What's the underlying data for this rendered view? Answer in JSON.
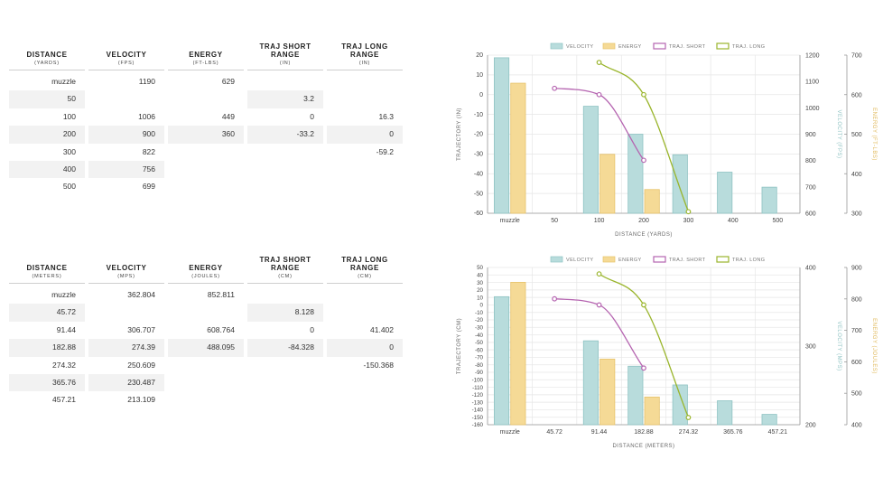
{
  "imperial": {
    "headers": [
      {
        "title": "DISTANCE",
        "sub": "(YARDS)"
      },
      {
        "title": "VELOCITY",
        "sub": "(FPS)"
      },
      {
        "title": "ENERGY",
        "sub": "(FT-LBS)"
      },
      {
        "title": "TRAJ SHORT RANGE",
        "sub": "(IN)"
      },
      {
        "title": "TRAJ LONG RANGE",
        "sub": "(IN)"
      }
    ],
    "rows": [
      [
        "muzzle",
        "1190",
        "629",
        "",
        ""
      ],
      [
        "50",
        "",
        "",
        "3.2",
        ""
      ],
      [
        "100",
        "1006",
        "449",
        "0",
        "16.3"
      ],
      [
        "200",
        "900",
        "360",
        "-33.2",
        "0"
      ],
      [
        "300",
        "822",
        "",
        "",
        "-59.2"
      ],
      [
        "400",
        "756",
        "",
        "",
        ""
      ],
      [
        "500",
        "699",
        "",
        "",
        ""
      ]
    ]
  },
  "metric": {
    "headers": [
      {
        "title": "DISTANCE",
        "sub": "(METERS)"
      },
      {
        "title": "VELOCITY",
        "sub": "(MPS)"
      },
      {
        "title": "ENERGY",
        "sub": "(JOULES)"
      },
      {
        "title": "TRAJ SHORT RANGE",
        "sub": "(CM)"
      },
      {
        "title": "TRAJ LONG RANGE",
        "sub": "(CM)"
      }
    ],
    "rows": [
      [
        "muzzle",
        "362.804",
        "852.811",
        "",
        ""
      ],
      [
        "45.72",
        "",
        "",
        "8.128",
        ""
      ],
      [
        "91.44",
        "306.707",
        "608.764",
        "0",
        "41.402"
      ],
      [
        "182.88",
        "274.39",
        "488.095",
        "-84.328",
        "0"
      ],
      [
        "274.32",
        "250.609",
        "",
        "",
        "-150.368"
      ],
      [
        "365.76",
        "230.487",
        "",
        "",
        ""
      ],
      [
        "457.21",
        "213.109",
        "",
        "",
        ""
      ]
    ]
  },
  "chart_data": [
    {
      "type": "bar",
      "legend": [
        "VELOCITY",
        "ENERGY",
        "TRAJ. SHORT",
        "TRAJ. LONG"
      ],
      "xlabel": "DISTANCE (YARDS)",
      "ylabel_left": "TRAJECTORY (IN)",
      "ylabel_right1": "VELOCITY (FPS)",
      "ylabel_right2": "ENERGY (FT-LBS)",
      "categories": [
        "muzzle",
        "50",
        "100",
        "200",
        "300",
        "400",
        "500"
      ],
      "traj_ticks": [
        20,
        10,
        0,
        -10,
        -20,
        -30,
        -40,
        -50,
        -60
      ],
      "traj_range": [
        -60,
        20
      ],
      "vel_ticks": [
        1200,
        1100,
        1000,
        900,
        800,
        700,
        600
      ],
      "vel_range": [
        600,
        1200
      ],
      "energy_ticks": [
        700,
        600,
        500,
        400,
        300
      ],
      "energy_range": [
        300,
        700
      ],
      "velocity": [
        1190,
        null,
        1006,
        900,
        822,
        756,
        699
      ],
      "energy": [
        629,
        null,
        449,
        360,
        null,
        null,
        null
      ],
      "traj_short": [
        null,
        3.2,
        0,
        -33.2,
        null,
        null,
        null
      ],
      "traj_long": [
        null,
        null,
        16.3,
        0,
        -59.2,
        null,
        null
      ],
      "colors": {
        "velocity": "#b8dcdc",
        "energy": "#f5da96",
        "traj_short": "#b564b0",
        "traj_long": "#9ab52c"
      }
    },
    {
      "type": "bar",
      "legend": [
        "VELOCITY",
        "ENERGY",
        "TRAJ. SHORT",
        "TRAJ. LONG"
      ],
      "xlabel": "DISTANCE (METERS)",
      "ylabel_left": "TRAJECTORY (CM)",
      "ylabel_right1": "VELOCITY (MPS)",
      "ylabel_right2": "ENERGY (JOULES)",
      "categories": [
        "muzzle",
        "45.72",
        "91.44",
        "182.88",
        "274.32",
        "365.76",
        "457.21"
      ],
      "traj_ticks": [
        50,
        40,
        30,
        20,
        10,
        0,
        -10,
        -20,
        -30,
        -40,
        -50,
        -60,
        -70,
        -80,
        -90,
        -100,
        -110,
        -120,
        -130,
        -140,
        -150,
        -160
      ],
      "traj_range": [
        -160,
        50
      ],
      "vel_ticks": [
        400,
        300,
        200
      ],
      "vel_range": [
        200,
        400
      ],
      "energy_ticks": [
        900,
        800,
        700,
        600,
        500,
        400
      ],
      "energy_range": [
        400,
        900
      ],
      "velocity": [
        362.804,
        null,
        306.707,
        274.39,
        250.609,
        230.487,
        213.109
      ],
      "energy": [
        852.811,
        null,
        608.764,
        488.095,
        null,
        null,
        null
      ],
      "traj_short": [
        null,
        8.128,
        0,
        -84.328,
        null,
        null,
        null
      ],
      "traj_long": [
        null,
        null,
        41.402,
        0,
        -150.368,
        null,
        null
      ],
      "colors": {
        "velocity": "#b8dcdc",
        "energy": "#f5da96",
        "traj_short": "#b564b0",
        "traj_long": "#9ab52c"
      }
    }
  ]
}
